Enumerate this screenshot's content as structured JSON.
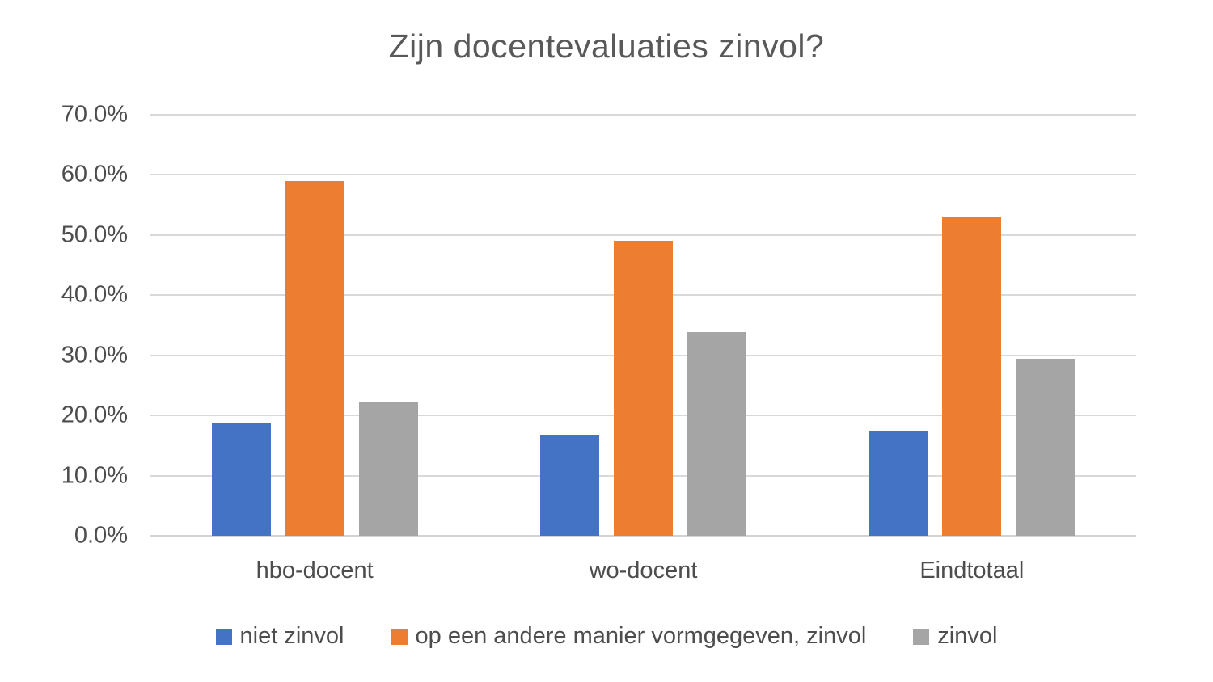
{
  "chart_data": {
    "type": "bar",
    "title": "Zijn docentevaluaties zinvol?",
    "categories": [
      "hbo-docent",
      "wo-docent",
      "Eindtotaal"
    ],
    "series": [
      {
        "name": "niet zinvol",
        "color": "#4472C4",
        "values": [
          18.8,
          16.8,
          17.5
        ]
      },
      {
        "name": "op een andere manier vormgegeven, zinvol",
        "color": "#ED7D31",
        "values": [
          59.0,
          49.0,
          53.0
        ]
      },
      {
        "name": "zinvol",
        "color": "#A5A5A5",
        "values": [
          22.2,
          33.9,
          29.4
        ]
      }
    ],
    "ylabel": "",
    "xlabel": "",
    "ylim": [
      0,
      70
    ],
    "yticks": [
      {
        "value": 70,
        "label": "70.0%"
      },
      {
        "value": 60,
        "label": "60.0%"
      },
      {
        "value": 50,
        "label": "50.0%"
      },
      {
        "value": 40,
        "label": "40.0%"
      },
      {
        "value": 30,
        "label": "30.0%"
      },
      {
        "value": 20,
        "label": "20.0%"
      },
      {
        "value": 10,
        "label": "10.0%"
      },
      {
        "value": 0,
        "label": "0.0%"
      }
    ],
    "grid": true,
    "legend_position": "bottom",
    "colors": {
      "gridline": "#D9D9D9",
      "axis_text": "#4D4D4D",
      "title_text": "#595959",
      "background": "#FFFFFF"
    }
  }
}
